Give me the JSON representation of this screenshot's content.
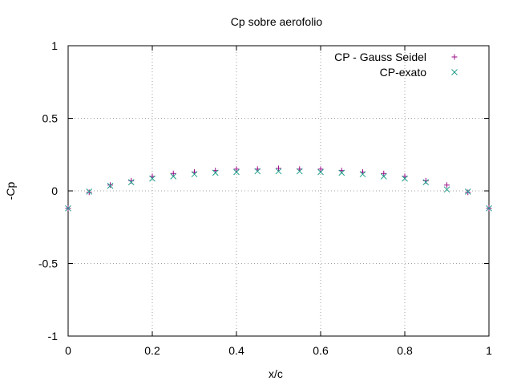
{
  "chart_data": {
    "type": "scatter",
    "title": "Cp sobre aerofolio",
    "xlabel": "x/c",
    "ylabel": "-Cp",
    "xlim": [
      0,
      1
    ],
    "ylim": [
      -1,
      1
    ],
    "x_ticks": [
      0,
      0.2,
      0.4,
      0.6,
      0.8,
      1
    ],
    "x_tick_labels": [
      "0",
      "0.2",
      "0.4",
      "0.6",
      "0.8",
      "1"
    ],
    "y_ticks": [
      -1,
      -0.5,
      0,
      0.5,
      1
    ],
    "y_tick_labels": [
      "-1",
      "-0.5",
      "0",
      "0.5",
      "1"
    ],
    "grid": true,
    "legend_position": "top-right",
    "series": [
      {
        "name": "CP - Gauss Seidel",
        "marker": "+",
        "color": "#9b0f8a",
        "x": [
          0,
          0.05,
          0.1,
          0.15,
          0.2,
          0.25,
          0.3,
          0.35,
          0.4,
          0.45,
          0.5,
          0.55,
          0.6,
          0.65,
          0.7,
          0.75,
          0.8,
          0.85,
          0.9,
          0.95,
          1
        ],
        "y": [
          -0.12,
          -0.01,
          0.04,
          0.07,
          0.1,
          0.12,
          0.13,
          0.14,
          0.15,
          0.15,
          0.155,
          0.15,
          0.15,
          0.14,
          0.13,
          0.12,
          0.1,
          0.07,
          0.04,
          -0.01,
          -0.12
        ]
      },
      {
        "name": "CP-exato",
        "marker": "x",
        "color": "#1f9e8a",
        "x": [
          0,
          0.05,
          0.1,
          0.15,
          0.2,
          0.25,
          0.3,
          0.35,
          0.4,
          0.45,
          0.5,
          0.55,
          0.6,
          0.65,
          0.7,
          0.75,
          0.8,
          0.85,
          0.9,
          0.95,
          1
        ],
        "y": [
          -0.12,
          -0.005,
          0.035,
          0.06,
          0.085,
          0.1,
          0.115,
          0.125,
          0.13,
          0.135,
          0.135,
          0.135,
          0.13,
          0.125,
          0.115,
          0.1,
          0.085,
          0.06,
          0.01,
          -0.005,
          -0.12
        ]
      }
    ]
  }
}
